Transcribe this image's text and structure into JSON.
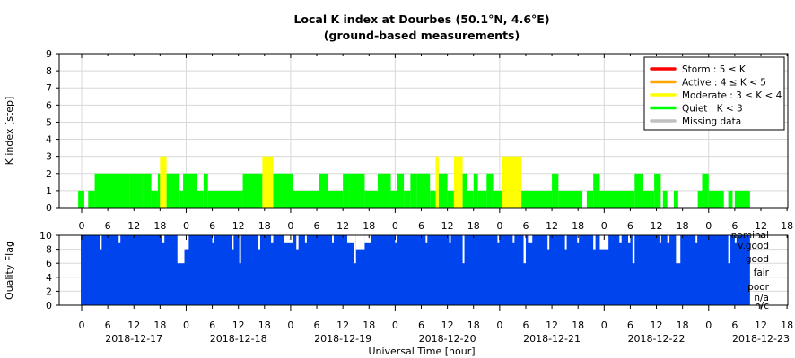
{
  "title": "Local K index at Dourbes (50.1°N, 4.6°E)",
  "subtitle": "(ground-based measurements)",
  "chart_data": [
    {
      "type": "bar",
      "panel": "k_index",
      "ylabel": "K index [step]",
      "ylim": [
        0,
        9
      ],
      "yticks": [
        0,
        1,
        2,
        3,
        4,
        5,
        6,
        7,
        8,
        9
      ],
      "xlim_hours": [
        -1,
        159
      ],
      "grid": true,
      "legend_position": "top-right",
      "legend": [
        {
          "label": "Storm : 5 ≤ K",
          "color": "#ff0000"
        },
        {
          "label": "Active : 4 ≤ K < 5",
          "color": "#ffa500"
        },
        {
          "label": "Moderate : 3 ≤ K < 4",
          "color": "#ffff00"
        },
        {
          "label": "Quiet : K < 3",
          "color": "#00ff00"
        },
        {
          "label": "Missing data",
          "color": "#c0c0c0"
        }
      ],
      "interval_hours": 0.5,
      "series_note": "Each run = [start_hour, end_hour, K] from 2018-12-17 00:00 UT",
      "values": [
        [
          -0.8,
          0.6,
          1
        ],
        [
          1.5,
          3.0,
          1
        ],
        [
          3.0,
          11.0,
          2
        ],
        [
          11.0,
          14.0,
          2
        ],
        [
          14.0,
          16.0,
          2
        ],
        [
          16.0,
          17.5,
          1
        ],
        [
          17.5,
          18.0,
          2
        ],
        [
          18.0,
          19.5,
          3
        ],
        [
          19.5,
          20.5,
          2
        ],
        [
          20.5,
          22.5,
          2
        ],
        [
          22.5,
          23.3,
          1
        ],
        [
          23.3,
          26.5,
          2
        ],
        [
          26.5,
          28.0,
          1
        ],
        [
          28.0,
          29.0,
          2
        ],
        [
          29.0,
          30.5,
          1
        ],
        [
          30.5,
          37.0,
          1
        ],
        [
          37.0,
          41.5,
          2
        ],
        [
          41.5,
          44.0,
          3
        ],
        [
          44.0,
          48.5,
          2
        ],
        [
          48.5,
          54.5,
          1
        ],
        [
          54.5,
          56.5,
          2
        ],
        [
          56.5,
          60.0,
          1
        ],
        [
          60.0,
          61.5,
          2
        ],
        [
          61.5,
          65.0,
          2
        ],
        [
          65.0,
          68.0,
          1
        ],
        [
          68.0,
          71.0,
          2
        ],
        [
          71.0,
          72.5,
          1
        ],
        [
          72.5,
          74.0,
          2
        ],
        [
          74.0,
          75.5,
          1
        ],
        [
          75.5,
          77.0,
          2
        ],
        [
          77.0,
          80.0,
          2
        ],
        [
          80.0,
          81.3,
          1
        ],
        [
          81.3,
          82.0,
          3
        ],
        [
          82.0,
          84.0,
          2
        ],
        [
          84.0,
          85.5,
          1
        ],
        [
          85.5,
          87.5,
          3
        ],
        [
          87.5,
          88.5,
          2
        ],
        [
          88.5,
          90.0,
          1
        ],
        [
          90.0,
          91.0,
          2
        ],
        [
          91.0,
          93.0,
          1
        ],
        [
          93.0,
          94.5,
          2
        ],
        [
          94.5,
          96.5,
          1
        ],
        [
          96.5,
          101.0,
          3
        ],
        [
          101.0,
          108.0,
          1
        ],
        [
          108.0,
          109.5,
          2
        ],
        [
          109.5,
          115.0,
          1
        ],
        [
          115.0,
          116.0,
          0
        ],
        [
          116.0,
          117.5,
          1
        ],
        [
          117.5,
          119.0,
          2
        ],
        [
          119.0,
          127.0,
          1
        ],
        [
          127.0,
          129.0,
          2
        ],
        [
          129.0,
          131.5,
          1
        ],
        [
          131.5,
          133.0,
          2
        ],
        [
          133.0,
          133.5,
          0
        ],
        [
          133.5,
          134.5,
          1
        ],
        [
          134.5,
          136.0,
          0
        ],
        [
          136.0,
          137.0,
          1
        ],
        [
          137.0,
          141.5,
          0
        ],
        [
          141.5,
          142.5,
          1
        ],
        [
          142.5,
          144.0,
          2
        ],
        [
          144.0,
          147.5,
          1
        ],
        [
          147.5,
          148.5,
          0
        ],
        [
          148.5,
          149.5,
          1
        ],
        [
          149.5,
          150.0,
          0
        ],
        [
          150.0,
          153.5,
          1
        ]
      ]
    },
    {
      "type": "area",
      "panel": "quality_flag",
      "ylabel": "Quality Flag",
      "ylim": [
        0,
        10
      ],
      "yticks": [
        0,
        2,
        4,
        6,
        8,
        10
      ],
      "color": "#0044ee",
      "gap_color": "#ffffff",
      "quality_levels": [
        "nominal",
        "v.good",
        "good",
        "fair",
        "poor",
        "n/a",
        "n/c"
      ],
      "xlabel": "Universal Time [hour]",
      "xtick_labels": [
        "0",
        "6",
        "12",
        "18"
      ],
      "dates": [
        "2018-12-17",
        "2018-12-18",
        "2018-12-19",
        "2018-12-20",
        "2018-12-21",
        "2018-12-22",
        "2018-12-23"
      ],
      "dips": [
        [
          4.2,
          4.6,
          8
        ],
        [
          8.5,
          8.9,
          9
        ],
        [
          18.5,
          19.0,
          9
        ],
        [
          22.0,
          23.6,
          6
        ],
        [
          23.6,
          24.6,
          8
        ],
        [
          30.0,
          30.4,
          9
        ],
        [
          34.5,
          34.9,
          8
        ],
        [
          36.2,
          36.6,
          6
        ],
        [
          40.6,
          41.0,
          8
        ],
        [
          43.5,
          44.0,
          9
        ],
        [
          46.5,
          48.5,
          9
        ],
        [
          49.3,
          49.8,
          8
        ],
        [
          51.3,
          51.7,
          9
        ],
        [
          57.5,
          57.9,
          9
        ],
        [
          61.0,
          62.5,
          9
        ],
        [
          62.5,
          63.0,
          6
        ],
        [
          63.0,
          65.0,
          8
        ],
        [
          65.0,
          66.5,
          9
        ],
        [
          72.0,
          72.4,
          9
        ],
        [
          79.0,
          79.4,
          9
        ],
        [
          84.4,
          84.8,
          9
        ],
        [
          87.5,
          87.9,
          6
        ],
        [
          95.5,
          95.9,
          9
        ],
        [
          99.0,
          99.4,
          9
        ],
        [
          101.5,
          102.0,
          6
        ],
        [
          102.5,
          103.5,
          9
        ],
        [
          107.0,
          107.4,
          8
        ],
        [
          111.0,
          111.4,
          8
        ],
        [
          113.8,
          114.2,
          9
        ],
        [
          117.5,
          118.0,
          8
        ],
        [
          119.0,
          121.0,
          8
        ],
        [
          123.5,
          124.0,
          9
        ],
        [
          125.5,
          126.0,
          9
        ],
        [
          126.5,
          127.0,
          6
        ],
        [
          132.7,
          133.1,
          9
        ],
        [
          134.5,
          135.0,
          9
        ],
        [
          136.5,
          137.5,
          6
        ],
        [
          141.0,
          141.4,
          9
        ],
        [
          148.5,
          149.0,
          6
        ],
        [
          150.0,
          150.4,
          9
        ]
      ],
      "end_hour": 153.5
    }
  ]
}
